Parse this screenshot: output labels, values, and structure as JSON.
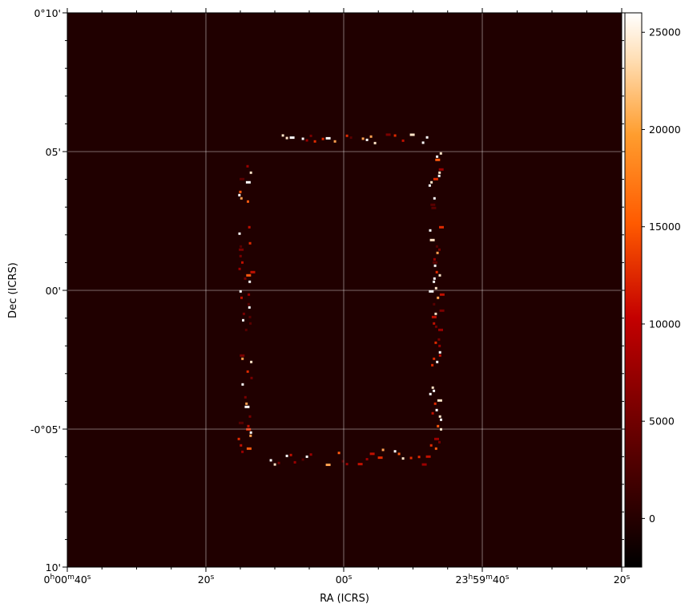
{
  "chart_data": {
    "type": "heatmap",
    "title": "",
    "xlabel": "RA (ICRS)",
    "ylabel": "Dec (ICRS)",
    "x_ticks": [
      {
        "h": "0",
        "m": "00",
        "s": "40",
        "full": true
      },
      {
        "s": "20"
      },
      {
        "s": "00"
      },
      {
        "h": "23",
        "m": "59",
        "s": "40",
        "full": true
      },
      {
        "s": "20"
      }
    ],
    "y_ticks": [
      "0°10'",
      "05'",
      "00'",
      "-0°05'",
      "10'"
    ],
    "grid": true,
    "grid_color": "#ffffff",
    "colormap": "gist_heat",
    "colorbar": {
      "min": -2500,
      "max": 26000,
      "ticks": [
        "0",
        "5000",
        "10000",
        "15000",
        "20000",
        "25000"
      ],
      "tick_values": [
        0,
        5000,
        10000,
        15000,
        20000,
        25000
      ]
    },
    "background_value": 0,
    "pattern": {
      "shape": "square frame of bright pixels",
      "outer_ra_range_s": [
        -14.5,
        15.4
      ],
      "outer_dec_range_arcmin": [
        -6.3,
        5.7
      ],
      "ring_width_arcmin": 0.6
    }
  }
}
